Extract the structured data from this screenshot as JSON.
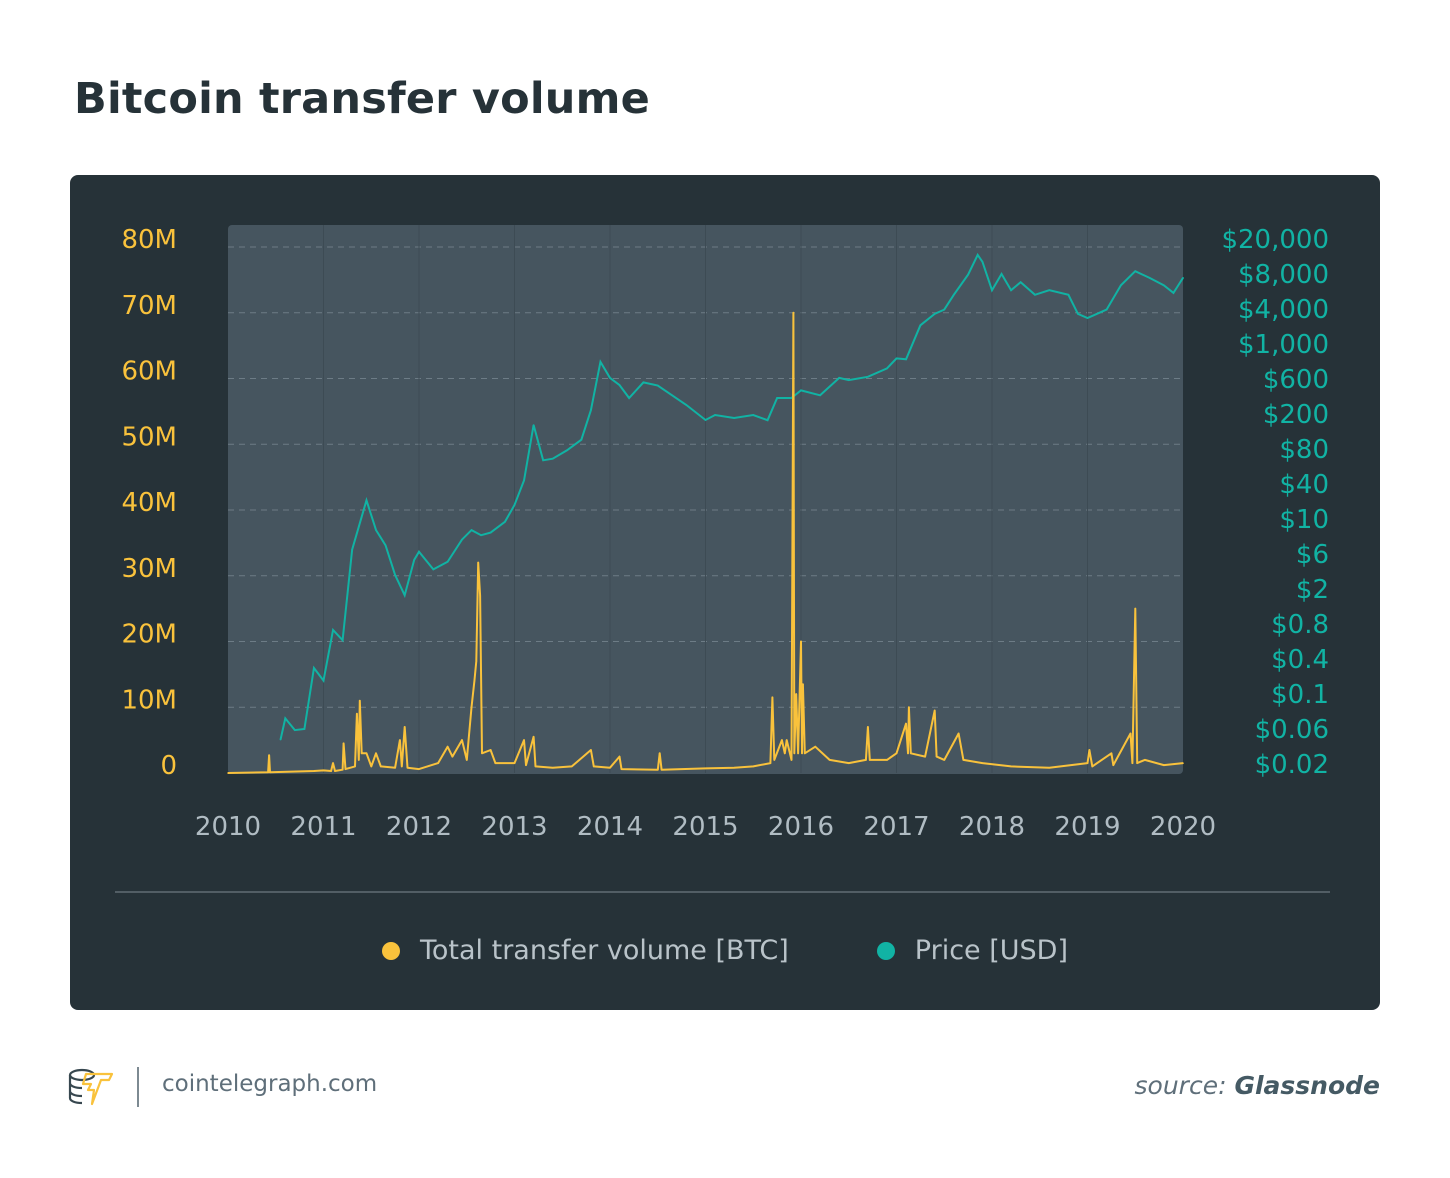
{
  "title": "Bitcoin transfer volume",
  "footer": {
    "site": "cointelegraph.com",
    "source_prefix": "source:",
    "source_name": "Glassnode"
  },
  "colors": {
    "volume": "#f9c23c",
    "price": "#11b3a4",
    "card": "#263238",
    "plot": "#46555f",
    "title": "#263238"
  },
  "chart_data": {
    "type": "line",
    "title": "Bitcoin transfer volume",
    "xlim": [
      2010,
      2020
    ],
    "x_ticks": [
      "2010",
      "2011",
      "2012",
      "2013",
      "2014",
      "2015",
      "2016",
      "2017",
      "2018",
      "2019",
      "2020"
    ],
    "left_axis": {
      "ylim": [
        0,
        80
      ],
      "unit": "M",
      "ticks": [
        "0",
        "10M",
        "20M",
        "30M",
        "40M",
        "50M",
        "60M",
        "70M",
        "80M"
      ],
      "tick_values": [
        0,
        10,
        20,
        30,
        40,
        50,
        60,
        70,
        80
      ]
    },
    "right_axis": {
      "scale": "non-uniform (log-like)",
      "ticks": [
        "$0.02",
        "$0.06",
        "$0.1",
        "$0.4",
        "$0.8",
        "$2",
        "$6",
        "$10",
        "$40",
        "$80",
        "$200",
        "$600",
        "$1,000",
        "$4,000",
        "$8,000",
        "$20,000"
      ],
      "tick_values": [
        0.02,
        0.06,
        0.1,
        0.4,
        0.8,
        2,
        6,
        10,
        40,
        80,
        200,
        600,
        1000,
        4000,
        8000,
        20000
      ]
    },
    "grid": "horizontal dashed",
    "legend": "bottom-center",
    "series": [
      {
        "name": "Total transfer volume [BTC]",
        "axis": "left",
        "unit": "millions BTC",
        "points": [
          [
            2010.0,
            0
          ],
          [
            2010.42,
            0.1
          ],
          [
            2010.43,
            2.7
          ],
          [
            2010.44,
            0.1
          ],
          [
            2010.9,
            0.3
          ],
          [
            2011.0,
            0.4
          ],
          [
            2011.08,
            0.3
          ],
          [
            2011.1,
            1.5
          ],
          [
            2011.12,
            0.3
          ],
          [
            2011.2,
            0.5
          ],
          [
            2011.21,
            4.5
          ],
          [
            2011.23,
            0.6
          ],
          [
            2011.33,
            1
          ],
          [
            2011.35,
            9
          ],
          [
            2011.37,
            2
          ],
          [
            2011.38,
            11
          ],
          [
            2011.4,
            3
          ],
          [
            2011.45,
            3
          ],
          [
            2011.5,
            1
          ],
          [
            2011.55,
            3
          ],
          [
            2011.6,
            1
          ],
          [
            2011.75,
            0.8
          ],
          [
            2011.8,
            5
          ],
          [
            2011.82,
            1
          ],
          [
            2011.85,
            7
          ],
          [
            2011.88,
            0.8
          ],
          [
            2012.0,
            0.6
          ],
          [
            2012.2,
            1.5
          ],
          [
            2012.3,
            4
          ],
          [
            2012.35,
            2.5
          ],
          [
            2012.45,
            5
          ],
          [
            2012.5,
            2
          ],
          [
            2012.55,
            10
          ],
          [
            2012.58,
            14
          ],
          [
            2012.6,
            17
          ],
          [
            2012.62,
            32
          ],
          [
            2012.64,
            27
          ],
          [
            2012.66,
            3
          ],
          [
            2012.75,
            3.5
          ],
          [
            2012.8,
            1.5
          ],
          [
            2013.0,
            1.5
          ],
          [
            2013.1,
            5
          ],
          [
            2013.12,
            1.2
          ],
          [
            2013.2,
            5.5
          ],
          [
            2013.22,
            1
          ],
          [
            2013.4,
            0.8
          ],
          [
            2013.6,
            1
          ],
          [
            2013.8,
            3.5
          ],
          [
            2013.83,
            1
          ],
          [
            2014.0,
            0.8
          ],
          [
            2014.1,
            2.5
          ],
          [
            2014.12,
            0.6
          ],
          [
            2014.5,
            0.5
          ],
          [
            2014.52,
            3
          ],
          [
            2014.54,
            0.5
          ],
          [
            2015.0,
            0.7
          ],
          [
            2015.3,
            0.8
          ],
          [
            2015.5,
            1
          ],
          [
            2015.68,
            1.5
          ],
          [
            2015.7,
            11.5
          ],
          [
            2015.72,
            2
          ],
          [
            2015.8,
            5
          ],
          [
            2015.83,
            3
          ],
          [
            2015.85,
            5
          ],
          [
            2015.9,
            2
          ],
          [
            2015.92,
            70
          ],
          [
            2015.93,
            3
          ],
          [
            2015.95,
            12
          ],
          [
            2015.97,
            3
          ],
          [
            2016.0,
            20
          ],
          [
            2016.01,
            3
          ],
          [
            2016.02,
            13.5
          ],
          [
            2016.04,
            3
          ],
          [
            2016.15,
            4
          ],
          [
            2016.3,
            2
          ],
          [
            2016.5,
            1.5
          ],
          [
            2016.68,
            2
          ],
          [
            2016.7,
            7
          ],
          [
            2016.72,
            2
          ],
          [
            2016.9,
            2
          ],
          [
            2017.0,
            3
          ],
          [
            2017.1,
            7.5
          ],
          [
            2017.12,
            3
          ],
          [
            2017.13,
            10
          ],
          [
            2017.15,
            3
          ],
          [
            2017.3,
            2.5
          ],
          [
            2017.4,
            9.5
          ],
          [
            2017.42,
            2.5
          ],
          [
            2017.5,
            2
          ],
          [
            2017.65,
            6
          ],
          [
            2017.7,
            2
          ],
          [
            2017.9,
            1.5
          ],
          [
            2018.2,
            1
          ],
          [
            2018.6,
            0.8
          ],
          [
            2019.0,
            1.5
          ],
          [
            2019.02,
            3.5
          ],
          [
            2019.05,
            1
          ],
          [
            2019.25,
            3
          ],
          [
            2019.27,
            1.2
          ],
          [
            2019.45,
            6
          ],
          [
            2019.47,
            1.5
          ],
          [
            2019.5,
            25
          ],
          [
            2019.52,
            1.5
          ],
          [
            2019.6,
            2
          ],
          [
            2019.8,
            1.2
          ],
          [
            2020.0,
            1.5
          ]
        ]
      },
      {
        "name": "Price [USD]",
        "axis": "right",
        "unit": "USD",
        "points": [
          [
            2010.55,
            0.043
          ],
          [
            2010.6,
            0.07
          ],
          [
            2010.7,
            0.058
          ],
          [
            2010.8,
            0.06
          ],
          [
            2010.9,
            0.28
          ],
          [
            2011.0,
            0.17
          ],
          [
            2011.1,
            0.71
          ],
          [
            2011.2,
            0.58
          ],
          [
            2011.3,
            6.4
          ],
          [
            2011.45,
            21
          ],
          [
            2011.55,
            8.5
          ],
          [
            2011.65,
            6.8
          ],
          [
            2011.75,
            3.1
          ],
          [
            2011.85,
            1.7
          ],
          [
            2011.95,
            5.0
          ],
          [
            2012.0,
            6.2
          ],
          [
            2012.15,
            3.7
          ],
          [
            2012.3,
            4.7
          ],
          [
            2012.45,
            7.4
          ],
          [
            2012.55,
            8.5
          ],
          [
            2012.65,
            7.9
          ],
          [
            2012.75,
            8.2
          ],
          [
            2012.9,
            9.6
          ],
          [
            2013.0,
            17.4
          ],
          [
            2013.1,
            43
          ],
          [
            2013.2,
            150
          ],
          [
            2013.3,
            64
          ],
          [
            2013.4,
            66
          ],
          [
            2013.55,
            78
          ],
          [
            2013.7,
            102
          ],
          [
            2013.8,
            225
          ],
          [
            2013.9,
            770
          ],
          [
            2014.0,
            610
          ],
          [
            2014.1,
            496
          ],
          [
            2014.2,
            330
          ],
          [
            2014.35,
            540
          ],
          [
            2014.5,
            490
          ],
          [
            2014.65,
            360
          ],
          [
            2014.8,
            265
          ],
          [
            2015.0,
            171
          ],
          [
            2015.1,
            195
          ],
          [
            2015.3,
            180
          ],
          [
            2015.5,
            195
          ],
          [
            2015.65,
            170
          ],
          [
            2015.75,
            330
          ],
          [
            2015.9,
            330
          ],
          [
            2016.0,
            420
          ],
          [
            2016.2,
            360
          ],
          [
            2016.4,
            610
          ],
          [
            2016.5,
            580
          ],
          [
            2016.7,
            620
          ],
          [
            2016.9,
            700
          ],
          [
            2017.0,
            810
          ],
          [
            2017.1,
            800
          ],
          [
            2017.25,
            2100
          ],
          [
            2017.4,
            3300
          ],
          [
            2017.5,
            3900
          ],
          [
            2017.6,
            5300
          ],
          [
            2017.75,
            7900
          ],
          [
            2017.85,
            13200
          ],
          [
            2017.9,
            11000
          ],
          [
            2018.0,
            5800
          ],
          [
            2018.1,
            8000
          ],
          [
            2018.2,
            5800
          ],
          [
            2018.3,
            6800
          ],
          [
            2018.45,
            5300
          ],
          [
            2018.6,
            5800
          ],
          [
            2018.8,
            5300
          ],
          [
            2018.9,
            3300
          ],
          [
            2019.0,
            2800
          ],
          [
            2019.2,
            3900
          ],
          [
            2019.35,
            6400
          ],
          [
            2019.5,
            8600
          ],
          [
            2019.65,
            7400
          ],
          [
            2019.8,
            6400
          ],
          [
            2019.9,
            5500
          ],
          [
            2020.0,
            7400
          ],
          [
            2020.05,
            7400
          ]
        ]
      }
    ]
  }
}
